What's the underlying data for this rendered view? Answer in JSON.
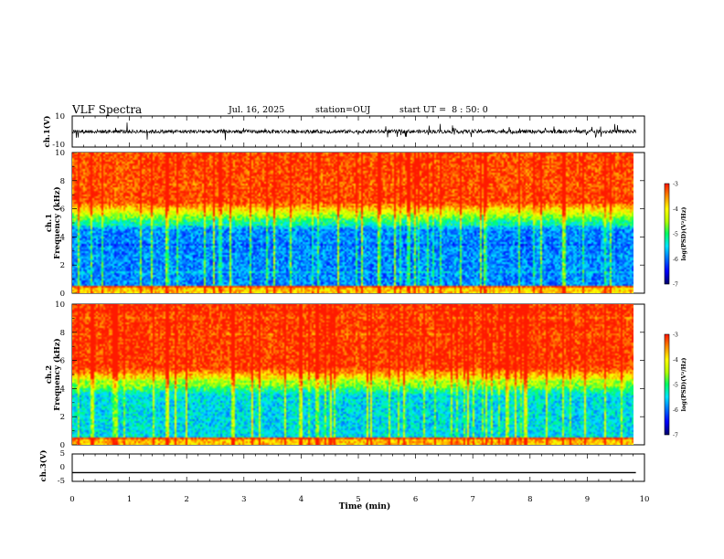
{
  "header": {
    "title": "VLF Spectra",
    "date": "Jul. 16, 2025",
    "station": "station=OUJ",
    "start_ut": "start UT =  8 : 50: 0"
  },
  "colors": {
    "waveform": "#000000",
    "colormap": [
      "#000070",
      "#0000ff",
      "#0070ff",
      "#00e5ff",
      "#00ff66",
      "#b5ff00",
      "#ffff00",
      "#ff9000",
      "#ff1a00"
    ]
  },
  "chart_data": [
    {
      "type": "line",
      "panel": "ch1-waveform",
      "ylabel": "ch.1(V)",
      "ylim": [
        -10,
        10
      ],
      "yticks": [
        "10",
        "-10"
      ],
      "xlim": [
        0,
        10
      ],
      "series": [
        {
          "values_description_visible": "",
          "baseline": 0,
          "noise_amplitude": 2
        }
      ]
    },
    {
      "type": "heatmap",
      "panel": "ch1-spectrogram",
      "ylabel": "ch.1\nFrequency (kHz)",
      "ylim": [
        0,
        10
      ],
      "yticks": [
        "0",
        "2",
        "4",
        "6",
        "8",
        "10"
      ],
      "xlim": [
        0,
        9.85
      ],
      "colorbar": {
        "label": "log(PSD)(V²/Hz)",
        "range": [
          -7,
          -3
        ],
        "ticks": [
          "-3",
          "-4",
          "-5",
          "-6",
          "-7"
        ]
      },
      "profile": {
        "low_band_kHz": [
          0.5,
          4.5
        ],
        "low_value": -6,
        "high_value": -3.3
      }
    },
    {
      "type": "heatmap",
      "panel": "ch2-spectrogram",
      "ylabel": "ch.2\nFrequency (kHz)",
      "ylim": [
        0,
        10
      ],
      "yticks": [
        "0",
        "2",
        "4",
        "6",
        "8",
        "10"
      ],
      "xlim": [
        0,
        9.85
      ],
      "colorbar": {
        "label": "log(PSD)(V²/Hz)",
        "range": [
          -7,
          -3
        ],
        "ticks": [
          "-3",
          "-4",
          "-5",
          "-6",
          "-7"
        ]
      },
      "profile": {
        "low_band_kHz": [
          0.5,
          3.5
        ],
        "low_value": -5.6,
        "high_value": -3.2
      }
    },
    {
      "type": "line",
      "panel": "ch3-waveform",
      "ylabel": "ch.3(V)",
      "ylim": [
        -5,
        5
      ],
      "yticks": [
        "5",
        "0",
        "-5"
      ],
      "xlim": [
        0,
        10
      ],
      "series": [
        {
          "constant": -1.8,
          "x_end": 9.85
        }
      ]
    }
  ],
  "x_axis": {
    "label": "Time (min)",
    "ticks": [
      "0",
      "1",
      "2",
      "3",
      "4",
      "5",
      "6",
      "7",
      "8",
      "9",
      "10"
    ]
  }
}
